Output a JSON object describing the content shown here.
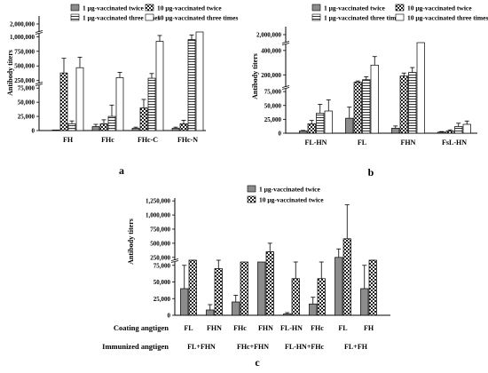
{
  "chart_data": [
    {
      "type": "bar",
      "panel_label": "a",
      "ylabel": "Antibody titers",
      "yscale": "broken",
      "yticks": [
        "0",
        "25,000",
        "50,000",
        "75,000",
        "250,000",
        "500,000",
        "750,000",
        "1,000,000",
        "2,000,000"
      ],
      "categories": [
        "FH",
        "FHc",
        "FHc-C",
        "FHc-N"
      ],
      "series": [
        {
          "name": "1 μg-vaccinated twice",
          "pattern": "gray",
          "values": [
            0,
            7000,
            4000,
            4000
          ],
          "errors": [
            0,
            4000,
            2000,
            2000
          ]
        },
        {
          "name": "10 μg-vaccinated twice",
          "pattern": "checker",
          "values": [
            380000,
            12000,
            40000,
            12000
          ],
          "errors": [
            250000,
            7000,
            15000,
            6000
          ]
        },
        {
          "name": "1 μg-vaccinated three times",
          "pattern": "hlines",
          "values": [
            12000,
            25000,
            290000,
            950000
          ],
          "errors": [
            5000,
            20000,
            80000,
            80000
          ]
        },
        {
          "name": "10 μg-vaccinated three times",
          "pattern": "plain",
          "values": [
            470000,
            300000,
            920000,
            1500000
          ],
          "errors": [
            180000,
            90000,
            100000,
            0
          ]
        }
      ]
    },
    {
      "type": "bar",
      "panel_label": "b",
      "ylabel": "Antibody titers",
      "yscale": "broken",
      "yticks": [
        "0",
        "25,000",
        "50,000",
        "75,000",
        "200,000",
        "400,000",
        "2,000,000"
      ],
      "categories": [
        "FL-HN",
        "FL",
        "FHN",
        "FsL-HN"
      ],
      "series": [
        {
          "name": "1 μg-vaccinated twice",
          "pattern": "gray",
          "values": [
            4000,
            27000,
            9000,
            2000
          ],
          "errors": [
            1000,
            20000,
            4000,
            1000
          ]
        },
        {
          "name": "10 μg-vaccinated twice",
          "pattern": "checker",
          "values": [
            17000,
            140000,
            190000,
            4000
          ],
          "errors": [
            6000,
            10000,
            25000,
            2000
          ]
        },
        {
          "name": "1 μg-vaccinated three times",
          "pattern": "hlines",
          "values": [
            36000,
            160000,
            220000,
            12000
          ],
          "errors": [
            16000,
            25000,
            40000,
            6000
          ]
        },
        {
          "name": "10 μg-vaccinated three times",
          "pattern": "plain",
          "values": [
            40000,
            280000,
            1600000,
            16000
          ],
          "errors": [
            20000,
            70000,
            0,
            6000
          ]
        }
      ]
    },
    {
      "type": "bar",
      "panel_label": "c",
      "ylabel": "Antibody titers",
      "yscale": "broken",
      "yticks": [
        "0",
        "25,000",
        "50,000",
        "75,000",
        "250,000",
        "500,000",
        "750,000",
        "1,000,000",
        "1,250,000"
      ],
      "categories": [
        "FL",
        "FHN",
        "FHc",
        "FHN",
        "FL-HN",
        "FHc",
        "FL",
        "FH"
      ],
      "coating_label": "Coating angtigen",
      "immunized_label": "Immunized angtigen",
      "immunized_groups": [
        "FL+FHN",
        "FHc+FHN",
        "FL-HN+FHc",
        "FL+FH"
      ],
      "series": [
        {
          "name": "1 μg-vaccinated twice",
          "pattern": "gray",
          "values": [
            40000,
            8000,
            20000,
            80000,
            2000,
            17000,
            250000,
            40000
          ],
          "errors": [
            35000,
            8000,
            10000,
            0,
            2000,
            10000,
            150000,
            35000
          ]
        },
        {
          "name": "10 μg-vaccinated twice",
          "pattern": "checker",
          "values": [
            100000,
            70000,
            80000,
            350000,
            55000,
            55000,
            580000,
            100000
          ],
          "errors": [
            30000,
            20000,
            0,
            150000,
            25000,
            25000,
            600000,
            20000
          ]
        }
      ]
    }
  ]
}
